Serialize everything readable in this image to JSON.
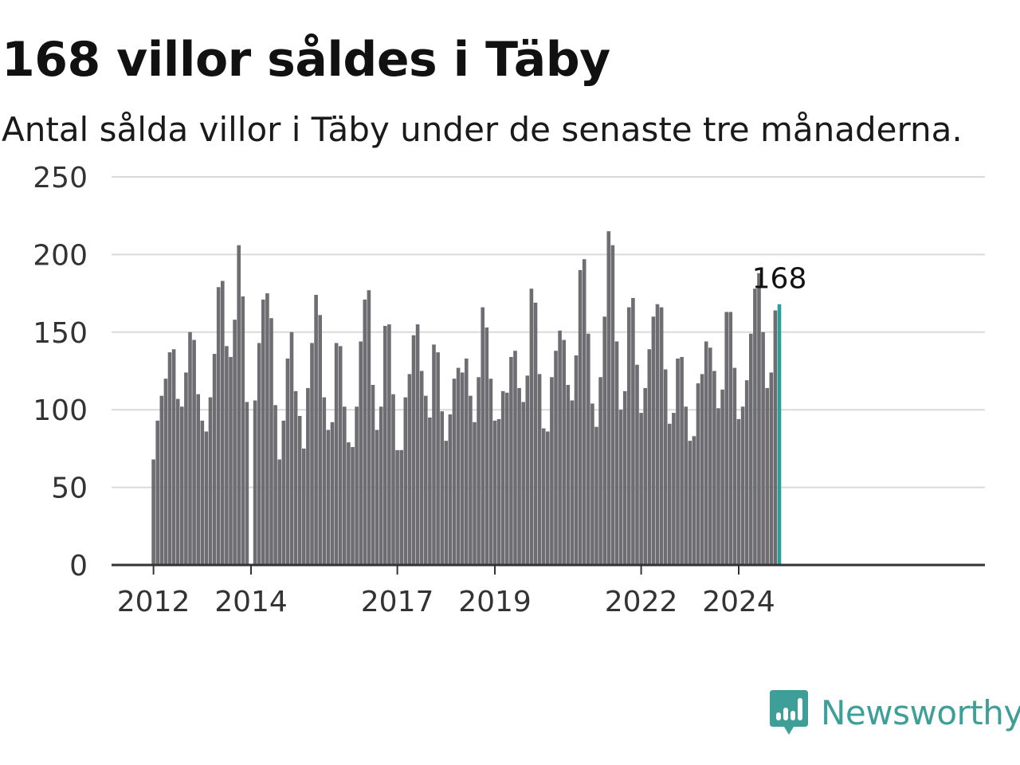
{
  "title": "168 villor såldes i Täby",
  "subtitle": "Antal sålda villor i Täby under de senaste tre månaderna.",
  "brand": {
    "name": "Newsworthy",
    "color": "#3d9f98",
    "icon": "newsworthy-logo-icon"
  },
  "colors": {
    "bar": "#6d6d72",
    "highlight": "#2aa198",
    "grid": "#dadada",
    "axis": "#333333"
  },
  "chart_data": {
    "type": "bar",
    "title": "168 villor såldes i Täby",
    "subtitle": "Antal sålda villor i Täby under de senaste tre månaderna.",
    "xlabel": "",
    "ylabel": "",
    "ylim": [
      0,
      250
    ],
    "yticks": [
      0,
      50,
      100,
      150,
      200,
      250
    ],
    "xticks": [
      "2012",
      "2014",
      "2017",
      "2019",
      "2022",
      "2024"
    ],
    "x_start": "2012-01",
    "grid": "horizontal",
    "highlight_label": "168",
    "values": [
      68,
      93,
      109,
      120,
      137,
      139,
      107,
      102,
      124,
      150,
      145,
      110,
      93,
      86,
      108,
      136,
      179,
      183,
      141,
      134,
      158,
      206,
      173,
      105,
      0,
      106,
      143,
      171,
      175,
      159,
      103,
      68,
      93,
      133,
      150,
      112,
      96,
      75,
      114,
      143,
      174,
      161,
      108,
      87,
      92,
      143,
      141,
      102,
      79,
      76,
      102,
      144,
      171,
      177,
      116,
      87,
      102,
      154,
      155,
      110,
      74,
      74,
      108,
      123,
      148,
      155,
      125,
      109,
      95,
      142,
      137,
      99,
      80,
      97,
      120,
      127,
      124,
      133,
      109,
      92,
      121,
      166,
      153,
      120,
      93,
      94,
      112,
      111,
      134,
      138,
      114,
      105,
      122,
      178,
      169,
      123,
      88,
      86,
      121,
      138,
      151,
      145,
      116,
      106,
      135,
      190,
      197,
      149,
      104,
      89,
      121,
      160,
      215,
      206,
      144,
      100,
      112,
      166,
      172,
      129,
      98,
      114,
      139,
      160,
      168,
      166,
      126,
      91,
      98,
      133,
      134,
      102,
      80,
      83,
      117,
      123,
      144,
      140,
      125,
      101,
      113,
      163,
      163,
      127,
      94,
      102,
      119,
      149,
      178,
      188,
      150,
      114,
      124,
      164,
      168
    ]
  }
}
